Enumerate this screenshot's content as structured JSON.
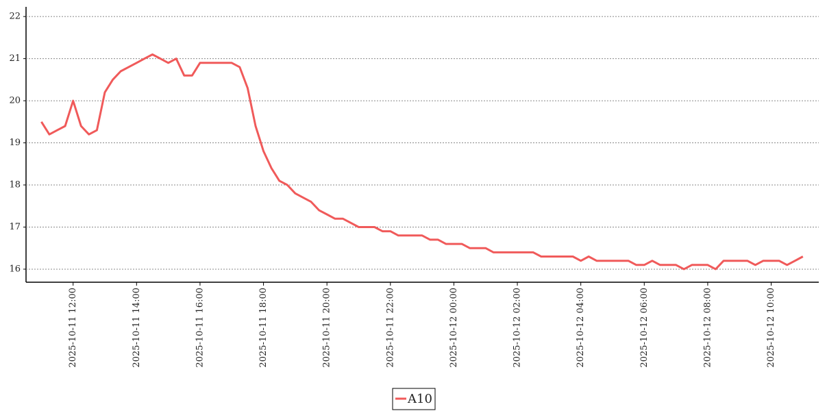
{
  "chart_data": {
    "type": "line",
    "x": [
      "2025-10-11 11:00",
      "2025-10-11 11:15",
      "2025-10-11 11:30",
      "2025-10-11 11:45",
      "2025-10-11 12:00",
      "2025-10-11 12:15",
      "2025-10-11 12:30",
      "2025-10-11 12:45",
      "2025-10-11 13:00",
      "2025-10-11 13:15",
      "2025-10-11 13:30",
      "2025-10-11 13:45",
      "2025-10-11 14:00",
      "2025-10-11 14:15",
      "2025-10-11 14:30",
      "2025-10-11 14:45",
      "2025-10-11 15:00",
      "2025-10-11 15:15",
      "2025-10-11 15:30",
      "2025-10-11 15:45",
      "2025-10-11 16:00",
      "2025-10-11 16:15",
      "2025-10-11 16:30",
      "2025-10-11 16:45",
      "2025-10-11 17:00",
      "2025-10-11 17:15",
      "2025-10-11 17:30",
      "2025-10-11 17:45",
      "2025-10-11 18:00",
      "2025-10-11 18:15",
      "2025-10-11 18:30",
      "2025-10-11 18:45",
      "2025-10-11 19:00",
      "2025-10-11 19:15",
      "2025-10-11 19:30",
      "2025-10-11 19:45",
      "2025-10-11 20:00",
      "2025-10-11 20:15",
      "2025-10-11 20:30",
      "2025-10-11 20:45",
      "2025-10-11 21:00",
      "2025-10-11 21:15",
      "2025-10-11 21:30",
      "2025-10-11 21:45",
      "2025-10-11 22:00",
      "2025-10-11 22:15",
      "2025-10-11 22:30",
      "2025-10-11 22:45",
      "2025-10-11 23:00",
      "2025-10-11 23:15",
      "2025-10-11 23:30",
      "2025-10-11 23:45",
      "2025-10-12 00:00",
      "2025-10-12 00:15",
      "2025-10-12 00:30",
      "2025-10-12 00:45",
      "2025-10-12 01:00",
      "2025-10-12 01:15",
      "2025-10-12 01:30",
      "2025-10-12 01:45",
      "2025-10-12 02:00",
      "2025-10-12 02:15",
      "2025-10-12 02:30",
      "2025-10-12 02:45",
      "2025-10-12 03:00",
      "2025-10-12 03:15",
      "2025-10-12 03:30",
      "2025-10-12 03:45",
      "2025-10-12 04:00",
      "2025-10-12 04:15",
      "2025-10-12 04:30",
      "2025-10-12 04:45",
      "2025-10-12 05:00",
      "2025-10-12 05:15",
      "2025-10-12 05:30",
      "2025-10-12 05:45",
      "2025-10-12 06:00",
      "2025-10-12 06:15",
      "2025-10-12 06:30",
      "2025-10-12 06:45",
      "2025-10-12 07:00",
      "2025-10-12 07:15",
      "2025-10-12 07:30",
      "2025-10-12 07:45",
      "2025-10-12 08:00",
      "2025-10-12 08:15",
      "2025-10-12 08:30",
      "2025-10-12 08:45",
      "2025-10-12 09:00",
      "2025-10-12 09:15",
      "2025-10-12 09:30",
      "2025-10-12 09:45",
      "2025-10-12 10:00",
      "2025-10-12 10:15",
      "2025-10-12 10:30",
      "2025-10-12 10:45",
      "2025-10-12 11:00"
    ],
    "series": [
      {
        "name": "A10",
        "color": "#f05a5a",
        "values": [
          19.5,
          19.2,
          19.3,
          19.4,
          20.0,
          19.4,
          19.2,
          19.3,
          20.2,
          20.5,
          20.7,
          20.8,
          20.9,
          21.0,
          21.1,
          21.0,
          20.9,
          21.0,
          20.6,
          20.6,
          20.9,
          20.9,
          20.9,
          20.9,
          20.9,
          20.8,
          20.3,
          19.4,
          18.8,
          18.4,
          18.1,
          18.0,
          17.8,
          17.7,
          17.6,
          17.4,
          17.3,
          17.2,
          17.2,
          17.1,
          17.0,
          17.0,
          17.0,
          16.9,
          16.9,
          16.8,
          16.8,
          16.8,
          16.8,
          16.7,
          16.7,
          16.6,
          16.6,
          16.6,
          16.5,
          16.5,
          16.5,
          16.4,
          16.4,
          16.4,
          16.4,
          16.4,
          16.4,
          16.3,
          16.3,
          16.3,
          16.3,
          16.3,
          16.2,
          16.3,
          16.2,
          16.2,
          16.2,
          16.2,
          16.2,
          16.1,
          16.1,
          16.2,
          16.1,
          16.1,
          16.1,
          16.0,
          16.1,
          16.1,
          16.1,
          16.0,
          16.2,
          16.2,
          16.2,
          16.2,
          16.1,
          16.2,
          16.2,
          16.2,
          16.1,
          16.2,
          16.3
        ]
      }
    ],
    "xlim": [
      "2025-10-11 10:31",
      "2025-10-12 11:30"
    ],
    "xticks": [
      "2025-10-11 12:00",
      "2025-10-11 14:00",
      "2025-10-11 16:00",
      "2025-10-11 18:00",
      "2025-10-11 20:00",
      "2025-10-11 22:00",
      "2025-10-12 00:00",
      "2025-10-12 02:00",
      "2025-10-12 04:00",
      "2025-10-12 06:00",
      "2025-10-12 08:00",
      "2025-10-12 10:00"
    ],
    "ylim": [
      15.69,
      22.23
    ],
    "yticks": [
      16,
      17,
      18,
      19,
      20,
      21,
      22
    ],
    "grid": true,
    "legend": "bottom"
  }
}
